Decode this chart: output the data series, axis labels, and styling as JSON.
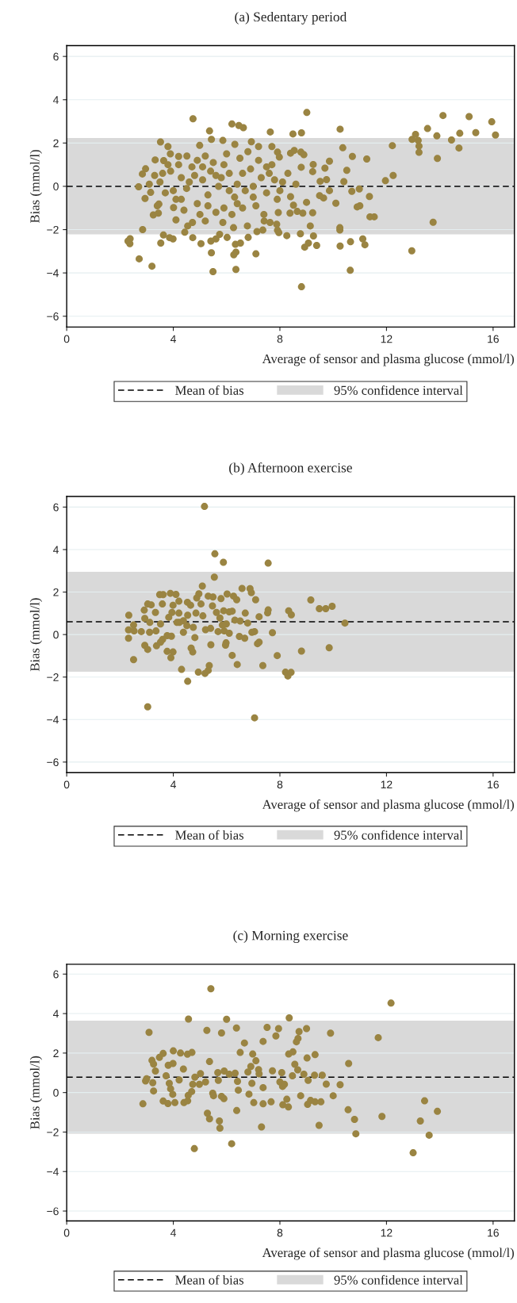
{
  "chart_data": [
    {
      "type": "scatter",
      "title": "(a) Sedentary period",
      "xlabel": "Average of sensor and plasma glucose (mmol/l)",
      "ylabel": "Bias (mmol/l)",
      "marker": "circle",
      "grid": "y",
      "legend": "bottom",
      "xlim": [
        0,
        16.8
      ],
      "ylim": [
        -6.5,
        6.5
      ],
      "xticks": [
        0,
        4,
        8,
        12,
        16
      ],
      "yticks": [
        {
          "value": -6,
          "label": "−6"
        },
        {
          "value": -4,
          "label": "−4"
        },
        {
          "value": -2,
          "label": "−2"
        },
        0,
        2,
        4,
        6
      ],
      "ref_lines": [
        {
          "axis": "y",
          "value": 0,
          "label": "Mean of bias",
          "line_style": "dashed",
          "color": "#000000"
        }
      ],
      "bands": [
        {
          "axis": "y",
          "from": -2.22,
          "to": 2.23,
          "label": "95% confidence interval",
          "color": "#d9d9d9"
        }
      ],
      "series": [
        {
          "color": "#9a8442",
          "x": [
            4.74,
            6.2,
            6.46,
            6.63,
            7.64,
            9.01,
            8.49,
            8.81,
            5.36,
            10.26,
            10.36,
            10.72,
            11.26,
            9.86,
            10.51,
            10.4,
            11.96,
            12.25,
            12.22,
            12.96,
            13.09,
            13.19,
            13.22,
            13.22,
            13.54,
            13.89,
            14.12,
            13.91,
            14.44,
            14.75,
            14.72,
            15.1,
            15.35,
            15.95,
            16.09,
            13.75,
            12.95,
            10.64,
            10.65,
            10.26,
            10.25,
            10.25,
            11.11,
            11.19,
            10.1,
            10.7,
            10.98,
            10.9,
            11.0,
            11.36,
            11.38,
            11.54,
            8.81,
            9.38,
            8.93,
            9.07,
            9.26,
            9.14,
            9.23,
            9.0,
            8.26,
            8.77,
            7.91,
            7.1,
            6.35,
            6.27,
            6.35,
            5.49,
            5.43,
            5.04,
            5.41,
            5.6,
            5.74,
            6.02,
            6.33,
            6.52,
            6.81,
            7.14,
            7.36,
            4.73,
            4.43,
            3.53,
            3.63,
            3.86,
            3.99,
            3.2,
            2.72,
            2.85,
            2.3,
            2.38,
            2.37,
            2.94,
            2.7,
            3.52,
            3.8,
            3.32,
            4.2,
            4.51,
            4.99,
            5.43,
            5.86,
            6.31,
            6.93,
            7.2,
            7.7,
            7.91,
            7.98,
            8.4,
            8.54,
            8.79,
            8.9,
            9.25,
            8.8,
            9.69,
            9.23,
            9.75,
            9.51,
            9.86,
            9.64,
            9.49,
            8.4,
            8.51,
            8.38,
            8.65,
            8.86,
            7.94,
            7.63,
            7.88,
            7.96,
            7.41,
            6.78,
            6.26,
            5.86,
            5.2,
            4.72,
            4.54,
            4.1,
            3.25,
            3.44,
            4.01,
            3.46,
            3.15,
            2.84,
            2.96,
            3.64,
            3.89,
            3.3,
            3.5,
            3.7,
            3.9,
            4.1,
            4.3,
            4.5,
            4.7,
            4.9,
            5.1,
            5.3,
            5.5,
            5.7,
            5.9,
            6.1,
            6.3,
            6.5,
            6.7,
            6.9,
            7.1,
            7.3,
            7.5,
            7.7,
            7.9,
            8.1,
            3.4,
            3.8,
            4.2,
            4.4,
            4.8,
            5.0,
            5.2,
            5.4,
            5.6,
            5.8,
            6.0,
            6.2,
            6.4,
            6.6,
            6.8,
            7.0,
            7.2,
            7.4,
            7.6,
            8.0,
            8.3,
            8.6,
            3.1,
            3.6,
            4.0,
            4.6,
            5.1,
            5.6,
            6.1,
            6.6,
            7.0,
            7.5,
            4.3,
            5.3,
            6.4,
            5.9,
            4.9,
            7.8
          ],
          "values": [
            3.12,
            2.88,
            2.81,
            2.71,
            2.51,
            3.41,
            2.42,
            2.47,
            2.56,
            2.64,
            1.78,
            1.38,
            1.26,
            1.16,
            0.74,
            0.22,
            0.26,
            0.5,
            1.88,
            2.17,
            2.4,
            2.12,
            1.86,
            1.57,
            2.67,
            2.33,
            3.27,
            1.29,
            2.14,
            2.45,
            1.77,
            3.22,
            2.48,
            2.98,
            2.37,
            -1.66,
            -2.98,
            -3.88,
            -2.56,
            -2.76,
            -1.91,
            -2.02,
            -2.43,
            -2.7,
            -0.78,
            -0.23,
            -0.12,
            -0.95,
            -0.9,
            -0.47,
            -1.41,
            -1.41,
            -4.64,
            -2.73,
            -2.81,
            -2.62,
            -2.29,
            -1.83,
            -1.22,
            -0.74,
            -2.28,
            -2.19,
            -2.03,
            -3.12,
            -3.04,
            -3.16,
            -3.84,
            -3.94,
            -3.07,
            -2.65,
            -2.53,
            -2.43,
            -2.22,
            -2.36,
            -2.68,
            -2.62,
            -2.36,
            -2.09,
            -2.02,
            -2.37,
            -2.12,
            -2.62,
            -2.25,
            -2.37,
            -2.43,
            -3.69,
            -3.35,
            -2.0,
            -2.53,
            -2.42,
            -2.65,
            -0.56,
            -0.02,
            2.05,
            1.84,
            1.22,
            1.38,
            1.4,
            1.89,
            2.17,
            2.12,
            1.94,
            2.06,
            1.84,
            1.84,
            1.58,
            1.35,
            1.53,
            1.66,
            1.58,
            1.46,
            1.01,
            0.88,
            0.84,
            0.68,
            0.31,
            0.23,
            -0.2,
            -0.54,
            -0.43,
            -0.48,
            -0.87,
            -1.24,
            -1.16,
            -1.24,
            -1.21,
            -1.67,
            -1.75,
            -2.14,
            -1.6,
            -1.83,
            -1.91,
            -1.67,
            -1.6,
            -1.67,
            -1.83,
            -1.55,
            -1.32,
            -1.24,
            -0.98,
            -0.82,
            -0.28,
            0.57,
            0.81,
            1.19,
            1.5,
            0.5,
            0.2,
            -0.3,
            0.7,
            -0.6,
            0.4,
            -0.1,
            0.9,
            -0.8,
            0.3,
            -0.4,
            1.1,
            0.0,
            -1.0,
            0.6,
            -0.5,
            1.3,
            -0.2,
            0.8,
            -0.9,
            0.4,
            -0.3,
            1.0,
            -0.6,
            0.2,
            -0.9,
            1.0,
            1.0,
            -1.1,
            0.5,
            -1.3,
            1.4,
            0.7,
            -1.2,
            0.4,
            1.5,
            -1.3,
            0.1,
            -1.0,
            1.6,
            0.0,
            1.2,
            -1.3,
            0.6,
            -0.2,
            0.6,
            0.1,
            0.1,
            0.6,
            -0.2,
            0.2,
            0.9,
            0.5,
            -0.2,
            0.6,
            -0.5,
            0.9,
            -0.6,
            -0.9,
            -0.8,
            1.0,
            1.2,
            0.3
          ]
        }
      ]
    },
    {
      "type": "scatter",
      "title": "(b) Afternoon exercise",
      "xlabel": "Average of sensor and plasma glucose (mmol/l)",
      "ylabel": "Bias (mmol/l)",
      "marker": "circle",
      "grid": "y",
      "legend": "bottom",
      "xlim": [
        0,
        16.8
      ],
      "ylim": [
        -6.5,
        6.5
      ],
      "xticks": [
        0,
        4,
        8,
        12,
        16
      ],
      "yticks": [
        {
          "value": -6,
          "label": "−6"
        },
        {
          "value": -4,
          "label": "−4"
        },
        {
          "value": -2,
          "label": "−2"
        },
        0,
        2,
        4,
        6
      ],
      "ref_lines": [
        {
          "axis": "y",
          "value": 0.6,
          "label": "Mean of bias",
          "line_style": "dashed",
          "color": "#000000"
        }
      ],
      "bands": [
        {
          "axis": "y",
          "from": -1.75,
          "to": 2.95,
          "label": "95% confidence interval",
          "color": "#d9d9d9"
        }
      ],
      "series": [
        {
          "color": "#9a8442",
          "x": [
            5.17,
            5.56,
            5.88,
            7.56,
            5.54,
            5.09,
            6.58,
            6.88,
            6.93,
            7.09,
            6.02,
            6.26,
            6.38,
            5.79,
            9.16,
            9.48,
            9.72,
            9.96,
            10.44,
            8.33,
            8.43,
            7.56,
            7.54,
            7.22,
            6.7,
            6.79,
            6.51,
            6.31,
            6.21,
            6.1,
            5.89,
            7.72,
            7.05,
            6.95,
            6.68,
            6.48,
            6.1,
            5.91,
            5.68,
            5.98,
            5.96,
            5.41,
            4.81,
            7.16,
            7.22,
            8.81,
            9.85,
            7.9,
            6.21,
            6.4,
            7.36,
            8.21,
            8.3,
            8.42,
            7.05,
            5.35,
            5.31,
            5.19,
            4.94,
            4.31,
            4.54,
            3.04,
            2.51,
            2.32,
            2.32,
            2.33,
            2.51,
            2.53,
            2.93,
            3.04,
            3.37,
            3.52,
            3.6,
            3.77,
            3.93,
            3.77,
            3.99,
            3.91,
            4.67,
            4.73,
            2.91,
            3.04,
            3.17,
            3.49,
            3.62,
            3.89,
            4.1,
            4.21,
            4.53,
            3.99,
            3.59,
            3.33,
            2.93,
            2.8,
            3.11,
            3.35,
            3.12,
            3.52,
            3.83,
            3.95,
            4.21,
            4.23,
            4.38,
            4.51,
            4.54,
            4.75,
            4.85,
            4.96,
            4.88,
            5.11,
            5.21,
            5.4,
            5.47,
            5.31,
            5.49,
            5.62,
            5.75,
            5.84,
            5.99,
            4.65,
            5.04,
            4.38,
            4.14
          ],
          "values": [
            6.03,
            3.8,
            3.4,
            3.36,
            2.7,
            2.28,
            2.17,
            2.16,
            1.97,
            1.64,
            1.91,
            1.81,
            1.64,
            1.69,
            1.63,
            1.22,
            1.22,
            1.33,
            0.54,
            1.12,
            0.93,
            1.16,
            1.02,
            0.84,
            1.01,
            0.54,
            0.64,
            0.68,
            1.1,
            1.07,
            1.12,
            0.09,
            0.14,
            0.11,
            -0.17,
            -0.09,
            0.06,
            0.17,
            0.14,
            -0.39,
            -0.5,
            -0.48,
            -0.14,
            -0.43,
            -0.36,
            -0.78,
            -0.62,
            -0.99,
            -0.98,
            -1.41,
            -1.46,
            -1.77,
            -1.95,
            -1.78,
            -3.92,
            -1.46,
            -1.69,
            -1.83,
            -1.77,
            -1.64,
            -2.2,
            -3.4,
            -1.18,
            -0.17,
            0.22,
            0.91,
            0.45,
            0.17,
            -0.51,
            -0.7,
            -0.53,
            -0.36,
            -0.23,
            -0.05,
            -0.08,
            -0.79,
            -0.82,
            -1.09,
            -0.64,
            -0.82,
            1.15,
            1.44,
            1.4,
            1.88,
            1.88,
            1.94,
            1.89,
            1.57,
            1.52,
            1.38,
            1.44,
            1.04,
            0.76,
            0.14,
            0.11,
            0.17,
            0.57,
            0.5,
            0.81,
            1.04,
            1.01,
            0.57,
            0.11,
            0.42,
            0.91,
            0.34,
            1.01,
            1.92,
            1.72,
            0.88,
            0.23,
            0.29,
            1.35,
            1.81,
            1.77,
            1.04,
            0.78,
            0.45,
            0.5,
            1.38,
            1.44,
            0.65,
            0.57
          ]
        }
      ]
    },
    {
      "type": "scatter",
      "title": "(c) Morning exercise",
      "xlabel": "Average of sensor and plasma glucose (mmol/l)",
      "ylabel": "Bias (mmol/l)",
      "marker": "circle",
      "grid": "y",
      "legend": "bottom",
      "xlim": [
        0,
        16.8
      ],
      "ylim": [
        -6.5,
        6.5
      ],
      "xticks": [
        0,
        4,
        8,
        12,
        16
      ],
      "yticks": [
        {
          "value": -6,
          "label": "−6"
        },
        {
          "value": -4,
          "label": "−4"
        },
        {
          "value": -2,
          "label": "−2"
        },
        0,
        2,
        4,
        6
      ],
      "ref_lines": [
        {
          "axis": "y",
          "value": 0.78,
          "label": "Mean of bias",
          "line_style": "dashed",
          "color": "#000000"
        }
      ],
      "bands": [
        {
          "axis": "y",
          "from": -2.08,
          "to": 3.64,
          "label": "95% confidence interval",
          "color": "#d9d9d9"
        }
      ],
      "series": [
        {
          "color": "#9a8442",
          "x": [
            5.41,
            12.17,
            4.57,
            6.0,
            8.35,
            3.09,
            5.26,
            5.81,
            6.37,
            7.52,
            7.95,
            9.0,
            9.9,
            8.72,
            7.85,
            8.68,
            8.62,
            7.37,
            6.67,
            11.69,
            8.49,
            8.33,
            9.32,
            9.02,
            6.98,
            6.51,
            7.1,
            8.56,
            8.67,
            10.58,
            4.0,
            4.27,
            4.53,
            4.7,
            3.62,
            3.48,
            3.2,
            3.26,
            3.33,
            3.81,
            3.99,
            4.38,
            5.36,
            3.0,
            2.96,
            3.23,
            3.26,
            2.86,
            3.62,
            3.8,
            4.06,
            4.4,
            4.54,
            4.56,
            4.69,
            3.9,
            3.98,
            3.85,
            4.22,
            4.73,
            3.73,
            4.98,
            5.02,
            4.81,
            5.21,
            5.48,
            5.51,
            5.28,
            5.36,
            5.73,
            5.75,
            4.79,
            6.19,
            6.38,
            5.9,
            5.81,
            5.69,
            5.67,
            5.91,
            6.1,
            6.32,
            6.41,
            6.44,
            6.84,
            7.02,
            6.95,
            6.8,
            6.91,
            7.2,
            7.22,
            7.37,
            7.37,
            7.67,
            7.31,
            7.72,
            8.07,
            8.0,
            8.1,
            8.17,
            8.26,
            8.11,
            8.32,
            8.47,
            8.9,
            9.06,
            9.3,
            9.59,
            9.74,
            10.26,
            10.0,
            8.78,
            9.15,
            9.04,
            9.32,
            9.54,
            9.47,
            10.56,
            10.8,
            10.85,
            11.83,
            13.0,
            13.27,
            13.43,
            13.6,
            13.91
          ],
          "values": [
            5.26,
            4.53,
            3.72,
            3.71,
            3.78,
            3.05,
            3.15,
            3.02,
            3.27,
            3.3,
            3.24,
            3.24,
            3.01,
            3.09,
            2.87,
            2.74,
            2.57,
            2.59,
            2.51,
            2.78,
            2.06,
            1.95,
            1.92,
            1.75,
            1.95,
            2.03,
            1.61,
            1.43,
            1.15,
            1.47,
            2.11,
            2.0,
            1.94,
            2.03,
            1.98,
            1.78,
            1.63,
            1.44,
            1.09,
            1.38,
            1.47,
            1.19,
            1.57,
            0.7,
            0.59,
            0.5,
            0.08,
            -0.57,
            -0.43,
            -0.56,
            -0.51,
            -0.51,
            -0.42,
            -0.14,
            0.05,
            0.19,
            -0.09,
            0.47,
            0.64,
            0.42,
            0.85,
            0.42,
            0.96,
            0.78,
            0.54,
            -0.03,
            -0.16,
            -1.05,
            -1.33,
            -1.44,
            -1.8,
            -2.84,
            -2.59,
            -0.91,
            -0.31,
            -0.19,
            0.62,
            1.01,
            1.09,
            0.93,
            0.98,
            0.57,
            0.12,
            -0.08,
            -0.51,
            0.47,
            1.04,
            1.32,
            1.16,
            0.95,
            0.25,
            -0.57,
            -0.47,
            -1.74,
            1.1,
            1.01,
            0.54,
            0.31,
            0.42,
            -0.34,
            -0.62,
            -0.73,
            0.85,
            0.93,
            0.62,
            0.88,
            0.88,
            0.43,
            0.4,
            -0.16,
            -0.16,
            -0.4,
            -0.6,
            -0.47,
            -0.47,
            -1.66,
            -0.87,
            -1.36,
            -2.09,
            -1.21,
            -3.05,
            -1.44,
            -0.42,
            -2.16,
            -0.95
          ]
        }
      ]
    }
  ]
}
